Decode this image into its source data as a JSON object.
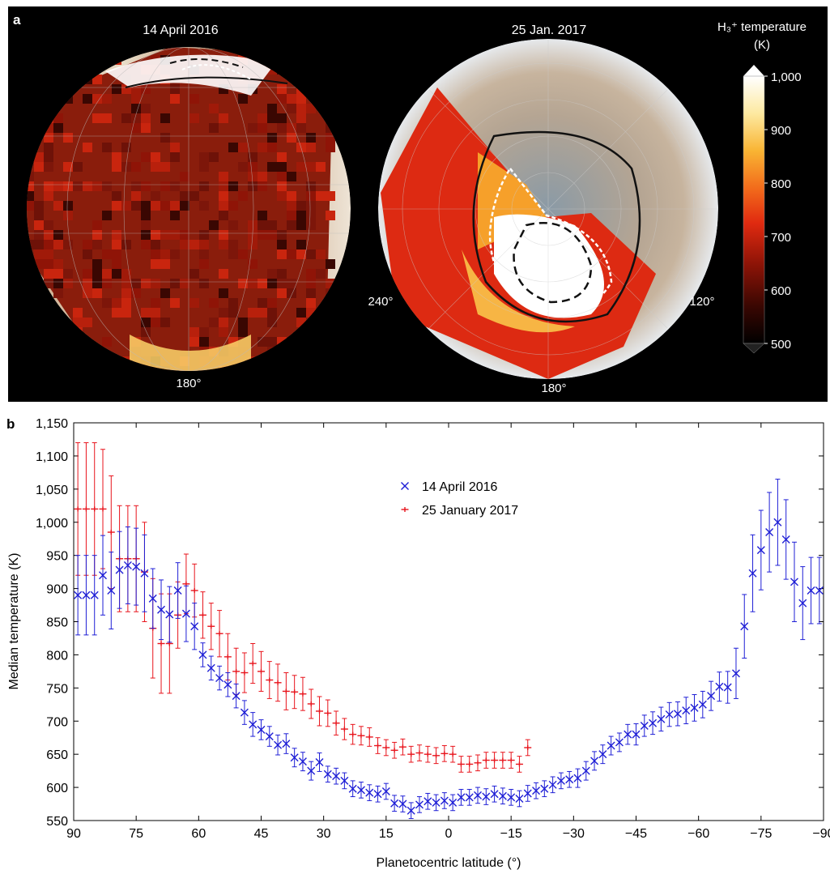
{
  "panel_a": {
    "label": "a",
    "map_left": {
      "title": "14 April 2016",
      "longitude_label": "180°"
    },
    "map_right": {
      "title": "25 Jan. 2017",
      "longitude_labels": [
        "240°",
        "180°",
        "120°"
      ]
    },
    "colorbar": {
      "title_line1": "H₃⁺ temperature",
      "title_line2": "(K)",
      "ticks": [
        "1,000",
        "900",
        "800",
        "700",
        "600",
        "500"
      ],
      "range": [
        500,
        1000
      ],
      "colors": [
        "#000000",
        "#3a0702",
        "#8f1407",
        "#e02a10",
        "#f26b1b",
        "#f9b433",
        "#fde9a0",
        "#ffffff"
      ]
    }
  },
  "panel_b": {
    "label": "b"
  },
  "chart_data": {
    "type": "scatter",
    "xlabel": "Planetocentric latitude (°)",
    "ylabel": "Median temperature (K)",
    "xlim": [
      90,
      -90
    ],
    "ylim": [
      550,
      1150
    ],
    "xticks": [
      90,
      75,
      60,
      45,
      30,
      15,
      0,
      -15,
      -30,
      -45,
      -60,
      -75,
      -90
    ],
    "xtick_labels": [
      "90",
      "75",
      "60",
      "45",
      "30",
      "15",
      "0",
      "−15",
      "−30",
      "−45",
      "−60",
      "−75",
      "−90"
    ],
    "yticks": [
      550,
      600,
      650,
      700,
      750,
      800,
      850,
      900,
      950,
      1000,
      1050,
      1100,
      1150
    ],
    "ytick_labels": [
      "550",
      "600",
      "650",
      "700",
      "750",
      "800",
      "850",
      "900",
      "950",
      "1,000",
      "1,050",
      "1,100",
      "1,150"
    ],
    "legend_position": "top-center",
    "series": [
      {
        "name": "14 April 2016",
        "marker": "x",
        "color": "#1f1fd6",
        "x": [
          89,
          87,
          85,
          83,
          81,
          79,
          77,
          75,
          73,
          71,
          69,
          67,
          65,
          63,
          61,
          59,
          57,
          55,
          53,
          51,
          49,
          47,
          45,
          43,
          41,
          39,
          37,
          35,
          33,
          31,
          29,
          27,
          25,
          23,
          21,
          19,
          17,
          15,
          13,
          11,
          9,
          7,
          5,
          3,
          1,
          -1,
          -3,
          -5,
          -7,
          -9,
          -11,
          -13,
          -15,
          -17,
          -19,
          -21,
          -23,
          -25,
          -27,
          -29,
          -31,
          -33,
          -35,
          -37,
          -39,
          -41,
          -43,
          -45,
          -47,
          -49,
          -51,
          -53,
          -55,
          -57,
          -59,
          -61,
          -63,
          -65,
          -67,
          -69,
          -71,
          -73,
          -75,
          -77,
          -79,
          -81,
          -83,
          -85,
          -87,
          -89
        ],
        "y": [
          890,
          890,
          890,
          920,
          897,
          928,
          935,
          933,
          923,
          885,
          868,
          861,
          897,
          862,
          843,
          800,
          780,
          765,
          755,
          738,
          713,
          695,
          687,
          677,
          664,
          666,
          645,
          639,
          625,
          638,
          620,
          617,
          610,
          598,
          596,
          592,
          590,
          594,
          576,
          575,
          565,
          574,
          579,
          577,
          580,
          577,
          585,
          585,
          588,
          586,
          590,
          587,
          585,
          583,
          591,
          595,
          598,
          604,
          610,
          612,
          614,
          625,
          640,
          650,
          663,
          668,
          680,
          680,
          693,
          697,
          703,
          710,
          711,
          716,
          720,
          725,
          738,
          752,
          751,
          772,
          843,
          923,
          958,
          985,
          1000,
          974,
          910,
          878,
          897,
          897
        ],
        "err": [
          60,
          60,
          60,
          60,
          58,
          58,
          58,
          58,
          58,
          45,
          45,
          42,
          42,
          42,
          35,
          18,
          18,
          18,
          18,
          18,
          18,
          18,
          15,
          15,
          15,
          15,
          14,
          14,
          14,
          14,
          12,
          12,
          12,
          12,
          12,
          12,
          12,
          12,
          12,
          12,
          12,
          12,
          12,
          12,
          12,
          12,
          12,
          12,
          12,
          12,
          12,
          12,
          12,
          12,
          12,
          12,
          12,
          12,
          12,
          12,
          14,
          14,
          14,
          14,
          14,
          14,
          15,
          16,
          16,
          17,
          18,
          18,
          18,
          20,
          20,
          20,
          22,
          22,
          24,
          38,
          48,
          58,
          60,
          60,
          65,
          60,
          60,
          55,
          50,
          50
        ]
      },
      {
        "name": "25 January 2017",
        "marker": "+",
        "color": "#e8141c",
        "x": [
          89,
          87,
          85,
          83,
          81,
          79,
          77,
          75,
          73,
          71,
          69,
          67,
          65,
          63,
          61,
          59,
          57,
          55,
          53,
          51,
          49,
          47,
          45,
          43,
          41,
          39,
          37,
          35,
          33,
          31,
          29,
          27,
          25,
          23,
          21,
          19,
          17,
          15,
          13,
          11,
          9,
          7,
          5,
          3,
          1,
          -1,
          -3,
          -5,
          -7,
          -9,
          -11,
          -13,
          -15,
          -17,
          -19
        ],
        "y": [
          1020,
          1020,
          1020,
          1020,
          985,
          945,
          945,
          945,
          925,
          840,
          817,
          817,
          860,
          907,
          897,
          860,
          843,
          832,
          797,
          775,
          773,
          787,
          775,
          762,
          758,
          745,
          744,
          741,
          726,
          715,
          712,
          697,
          688,
          680,
          678,
          676,
          663,
          660,
          656,
          661,
          650,
          652,
          650,
          648,
          651,
          650,
          635,
          635,
          637,
          641,
          641,
          641,
          641,
          635,
          660
        ],
        "err": [
          100,
          100,
          100,
          90,
          85,
          80,
          80,
          80,
          75,
          75,
          75,
          75,
          50,
          45,
          40,
          35,
          35,
          35,
          35,
          35,
          30,
          30,
          30,
          28,
          28,
          28,
          25,
          25,
          22,
          22,
          20,
          18,
          16,
          15,
          14,
          14,
          12,
          12,
          12,
          12,
          12,
          12,
          12,
          12,
          12,
          12,
          12,
          12,
          12,
          12,
          12,
          12,
          12,
          12,
          12
        ]
      }
    ]
  }
}
